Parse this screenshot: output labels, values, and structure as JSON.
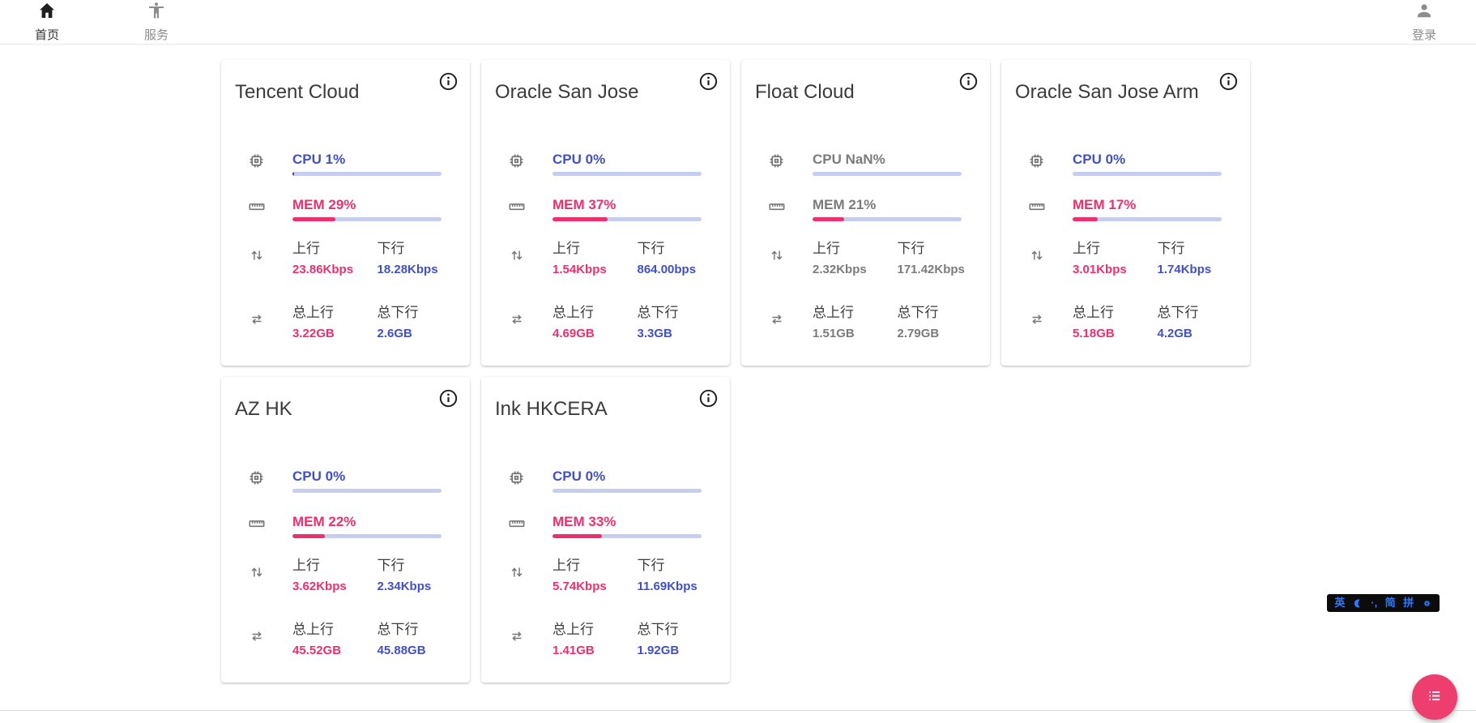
{
  "nav": {
    "home": {
      "label": "首页",
      "icon": "home-icon"
    },
    "services": {
      "label": "服务",
      "icon": "accessibility-icon"
    },
    "login": {
      "label": "登录",
      "icon": "person-icon"
    }
  },
  "cards": [
    {
      "title": "Tencent Cloud",
      "cpu_text": "CPU 1%",
      "cpu_pct": 1,
      "mem_text": "MEM 29%",
      "mem_pct": 29,
      "up_label": "上行",
      "up_value": "23.86Kbps",
      "down_label": "下行",
      "down_value": "18.28Kbps",
      "total_up_label": "总上行",
      "total_up_value": "3.22GB",
      "total_down_label": "总下行",
      "total_down_value": "2.6GB",
      "muted": false
    },
    {
      "title": "Oracle San Jose",
      "cpu_text": "CPU 0%",
      "cpu_pct": 0,
      "mem_text": "MEM 37%",
      "mem_pct": 37,
      "up_label": "上行",
      "up_value": "1.54Kbps",
      "down_label": "下行",
      "down_value": "864.00bps",
      "total_up_label": "总上行",
      "total_up_value": "4.69GB",
      "total_down_label": "总下行",
      "total_down_value": "3.3GB",
      "muted": false
    },
    {
      "title": "Float Cloud",
      "cpu_text": "CPU NaN%",
      "cpu_pct": 0,
      "mem_text": "MEM 21%",
      "mem_pct": 21,
      "up_label": "上行",
      "up_value": "2.32Kbps",
      "down_label": "下行",
      "down_value": "171.42Kbps",
      "total_up_label": "总上行",
      "total_up_value": "1.51GB",
      "total_down_label": "总下行",
      "total_down_value": "2.79GB",
      "muted": true
    },
    {
      "title": "Oracle San Jose Arm",
      "cpu_text": "CPU 0%",
      "cpu_pct": 0,
      "mem_text": "MEM 17%",
      "mem_pct": 17,
      "up_label": "上行",
      "up_value": "3.01Kbps",
      "down_label": "下行",
      "down_value": "1.74Kbps",
      "total_up_label": "总上行",
      "total_up_value": "5.18GB",
      "total_down_label": "总下行",
      "total_down_value": "4.2GB",
      "muted": false
    },
    {
      "title": "AZ HK",
      "cpu_text": "CPU 0%",
      "cpu_pct": 0,
      "mem_text": "MEM 22%",
      "mem_pct": 22,
      "up_label": "上行",
      "up_value": "3.62Kbps",
      "down_label": "下行",
      "down_value": "2.34Kbps",
      "total_up_label": "总上行",
      "total_up_value": "45.52GB",
      "total_down_label": "总下行",
      "total_down_value": "45.88GB",
      "muted": false
    },
    {
      "title": "Ink HKCERA",
      "cpu_text": "CPU 0%",
      "cpu_pct": 0,
      "mem_text": "MEM 33%",
      "mem_pct": 33,
      "up_label": "上行",
      "up_value": "5.74Kbps",
      "down_label": "下行",
      "down_value": "11.69Kbps",
      "total_up_label": "总上行",
      "total_up_value": "1.41GB",
      "total_down_label": "总下行",
      "total_down_value": "1.92GB",
      "muted": false
    }
  ],
  "ime_bar": {
    "english_label": "英",
    "punct_label": "·,",
    "simplified_label": "简",
    "pinyin_label": "拼",
    "icons": [
      "moon-icon",
      "gear-icon"
    ]
  },
  "fab": {
    "icon": "list-icon"
  },
  "colors": {
    "accent_blue": "#4150c4",
    "accent_pink": "#ee2f6d",
    "cpu_bar_fill": "#3b49b5",
    "bar_track": "#c7cdee",
    "muted_gray": "#7b7b7b",
    "fab_pink": "#ee3e6f",
    "ime_blue": "#2b7bfe"
  }
}
